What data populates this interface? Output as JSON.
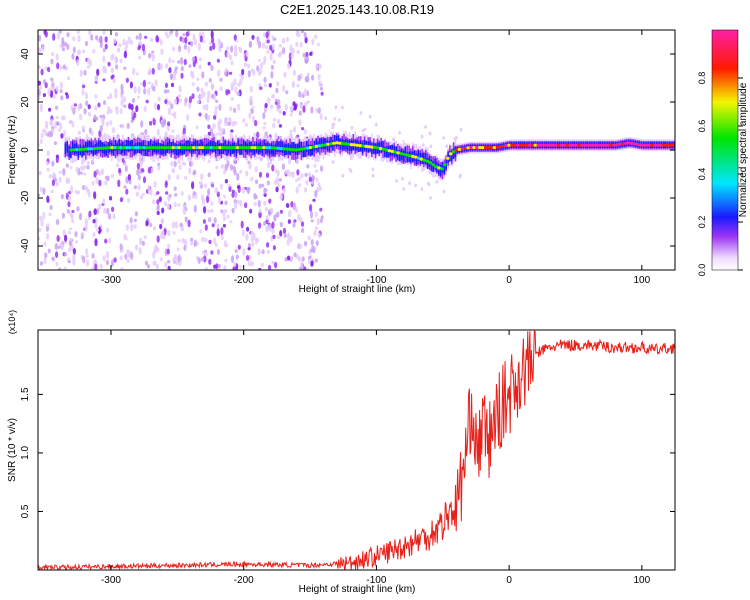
{
  "title": "C2E1.2025.143.10.08.R19",
  "chart_data": [
    {
      "type": "heatmap",
      "xlabel": "Height of straight line (km)",
      "ylabel": "Frequency (Hz)",
      "xlim": [
        -355,
        125
      ],
      "ylim": [
        -50,
        50
      ],
      "x_ticks": [
        -300,
        -200,
        -100,
        0,
        100
      ],
      "y_ticks": [
        -40,
        -20,
        0,
        20,
        40
      ],
      "colorbar": {
        "label": "Normalized spectral amplitude",
        "range": [
          0,
          1
        ],
        "ticks": [
          0.0,
          0.2,
          0.4,
          0.6,
          0.8
        ]
      },
      "dominant_frequency_trace": {
        "x": [
          -330,
          -300,
          -270,
          -240,
          -210,
          -180,
          -160,
          -140,
          -130,
          -115,
          -100,
          -85,
          -70,
          -60,
          -55,
          -50,
          -45,
          -40,
          -30,
          -20,
          -10,
          0,
          20,
          50,
          80,
          90,
          100,
          125
        ],
        "y": [
          0,
          1,
          1,
          1,
          1,
          1,
          0,
          2,
          3,
          2,
          1,
          -1,
          -3,
          -5,
          -7,
          -8,
          -2,
          0,
          1,
          1,
          1,
          2,
          2,
          2,
          2,
          3,
          2,
          2
        ]
      },
      "noise_extent_x": [
        -355,
        -140
      ]
    },
    {
      "type": "line",
      "xlabel": "Height of straight line (km)",
      "ylabel": "SNR (10 * v/v)",
      "multiplier": "(x10⁴)",
      "xlim": [
        -355,
        125
      ],
      "ylim": [
        0,
        2.05
      ],
      "x_ticks": [
        -300,
        -200,
        -100,
        0,
        100
      ],
      "y_ticks": [
        0.5,
        1.0,
        1.5
      ],
      "series": [
        {
          "color": "#e8201a",
          "x": [
            -355,
            -300,
            -250,
            -200,
            -150,
            -120,
            -100,
            -90,
            -80,
            -70,
            -60,
            -50,
            -45,
            -40,
            -35,
            -30,
            -28,
            -25,
            -20,
            -15,
            -10,
            -5,
            0,
            10,
            20,
            30,
            40,
            60,
            80,
            100,
            110,
            125
          ],
          "y": [
            0.02,
            0.03,
            0.04,
            0.05,
            0.04,
            0.06,
            0.12,
            0.16,
            0.2,
            0.25,
            0.3,
            0.4,
            0.5,
            0.55,
            0.8,
            1.2,
            1.5,
            1.0,
            1.2,
            1.1,
            1.3,
            1.4,
            1.5,
            1.7,
            1.85,
            1.9,
            1.92,
            1.92,
            1.9,
            1.9,
            1.88,
            1.9
          ]
        }
      ]
    }
  ]
}
